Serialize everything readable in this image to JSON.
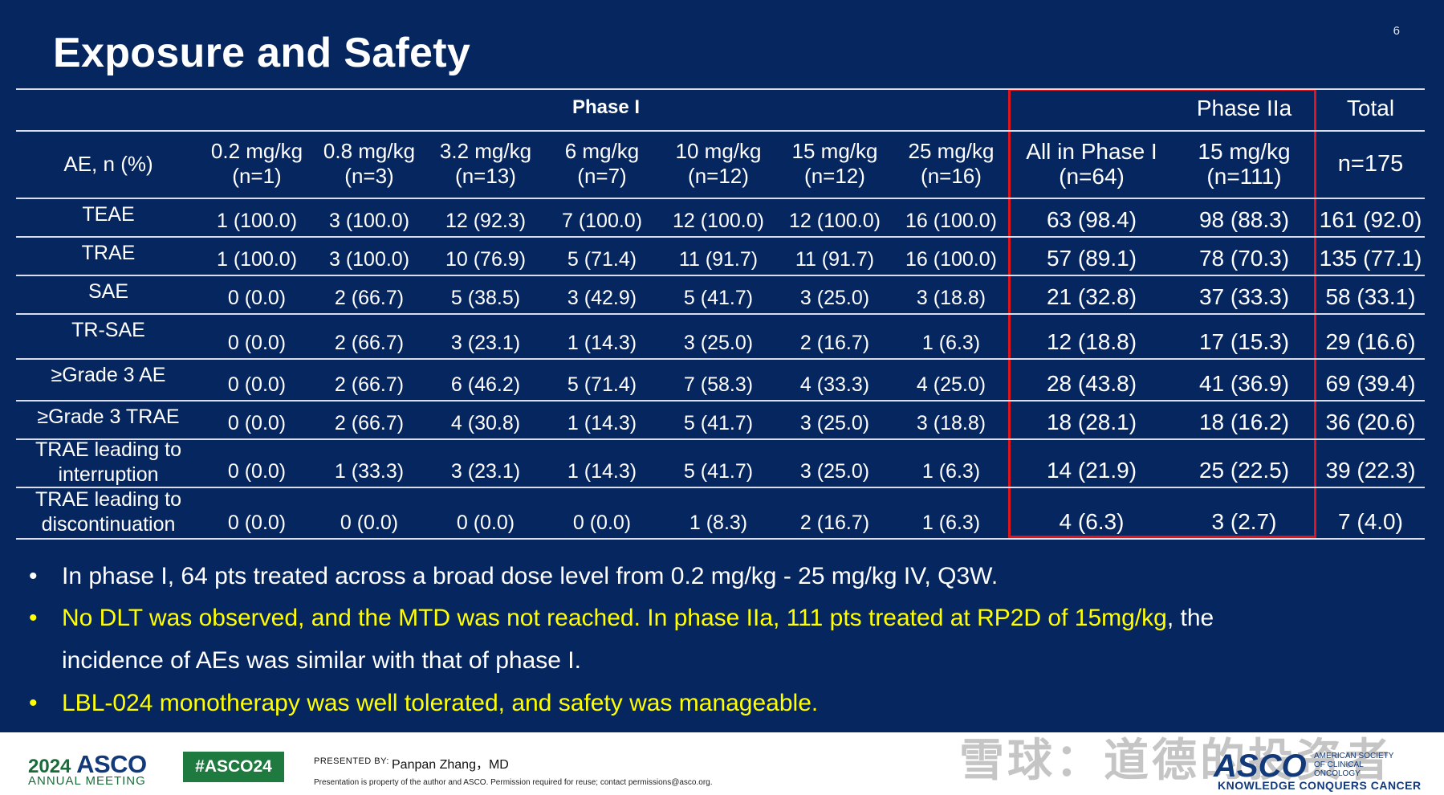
{
  "slide": {
    "page_number": "6",
    "title": "Exposure and Safety"
  },
  "table": {
    "group_headers": {
      "phase1": "Phase I",
      "phase2a": "Phase IIa",
      "total": "Total"
    },
    "columns": [
      {
        "line1": "AE, n (%)",
        "line2": ""
      },
      {
        "line1": "0.2 mg/kg",
        "line2": "(n=1)"
      },
      {
        "line1": "0.8 mg/kg",
        "line2": "(n=3)"
      },
      {
        "line1": "3.2 mg/kg",
        "line2": "(n=13)"
      },
      {
        "line1": "6 mg/kg",
        "line2": "(n=7)"
      },
      {
        "line1": "10 mg/kg",
        "line2": "(n=12)"
      },
      {
        "line1": "15 mg/kg",
        "line2": "(n=12)"
      },
      {
        "line1": "25 mg/kg",
        "line2": "(n=16)"
      },
      {
        "line1": "All in Phase I",
        "line2": "(n=64)"
      },
      {
        "line1": "15 mg/kg",
        "line2": "(n=111)"
      },
      {
        "line1": "n=175",
        "line2": ""
      }
    ],
    "rows": [
      {
        "label": "TEAE",
        "cells": [
          "1 (100.0)",
          "3 (100.0)",
          "12 (92.3)",
          "7 (100.0)",
          "12 (100.0)",
          "12 (100.0)",
          "16 (100.0)",
          "63 (98.4)",
          "98 (88.3)",
          "161 (92.0)"
        ]
      },
      {
        "label": "TRAE",
        "cells": [
          "1 (100.0)",
          "3 (100.0)",
          "10 (76.9)",
          "5 (71.4)",
          "11 (91.7)",
          "11 (91.7)",
          "16 (100.0)",
          "57 (89.1)",
          "78 (70.3)",
          "135 (77.1)"
        ]
      },
      {
        "label": "SAE",
        "cells": [
          "0 (0.0)",
          "2 (66.7)",
          "5 (38.5)",
          "3 (42.9)",
          "5 (41.7)",
          "3 (25.0)",
          "3 (18.8)",
          "21 (32.8)",
          "37 (33.3)",
          "58 (33.1)"
        ]
      },
      {
        "label": "TR-SAE",
        "cells": [
          "0 (0.0)",
          "2 (66.7)",
          "3 (23.1)",
          "1 (14.3)",
          "3 (25.0)",
          "2 (16.7)",
          "1 (6.3)",
          "12 (18.8)",
          "17 (15.3)",
          "29 (16.6)"
        ]
      },
      {
        "label": "≥Grade 3 AE",
        "cells": [
          "0 (0.0)",
          "2 (66.7)",
          "6 (46.2)",
          "5 (71.4)",
          "7 (58.3)",
          "4 (33.3)",
          "4 (25.0)",
          "28 (43.8)",
          "41 (36.9)",
          "69 (39.4)"
        ]
      },
      {
        "label": "≥Grade 3 TRAE",
        "cells": [
          "0 (0.0)",
          "2 (66.7)",
          "4 (30.8)",
          "1 (14.3)",
          "5 (41.7)",
          "3 (25.0)",
          "3 (18.8)",
          "18 (28.1)",
          "18 (16.2)",
          "36 (20.6)"
        ]
      },
      {
        "label": "TRAE leading to interruption",
        "cells": [
          "0 (0.0)",
          "1 (33.3)",
          "3 (23.1)",
          "1 (14.3)",
          "5 (41.7)",
          "3 (25.0)",
          "1 (6.3)",
          "14 (21.9)",
          "25 (22.5)",
          "39 (22.3)"
        ]
      },
      {
        "label": "TRAE leading to discontinuation",
        "cells": [
          "0 (0.0)",
          "0 (0.0)",
          "0 (0.0)",
          "0 (0.0)",
          "1 (8.3)",
          "2 (16.7)",
          "1 (6.3)",
          "4 (6.3)",
          "3 (2.7)",
          "7 (4.0)"
        ]
      }
    ]
  },
  "bullets": [
    {
      "parts": [
        {
          "text": "In phase I, 64 pts treated across a broad dose level from 0.2 mg/kg - 25 mg/kg IV, Q3W.",
          "color": "white"
        }
      ]
    },
    {
      "parts": [
        {
          "text": "No DLT was observed, and the MTD was not reached. In phase IIa, 111 pts treated at RP2D of 15mg/kg",
          "color": "yellow"
        },
        {
          "text": ", the",
          "color": "white"
        }
      ]
    },
    {
      "continuation": true,
      "parts": [
        {
          "text": "incidence of AEs was similar with that of phase I.",
          "color": "white"
        }
      ]
    },
    {
      "parts": [
        {
          "text": "LBL-024 monotherapy was well tolerated, and safety was manageable.",
          "color": "yellow"
        }
      ]
    }
  ],
  "footer": {
    "asco_year": "2024",
    "asco_word": "ASCO",
    "annual_meeting": "ANNUAL MEETING",
    "hashtag": "#ASCO24",
    "presented_by_label": "PRESENTED BY:",
    "presenter": "Panpan Zhang，MD",
    "property_notice": "Presentation is property of the author and ASCO. Permission required for reuse; contact permissions@asco.org.",
    "logo_text": "ASCO",
    "society_text": "AMERICAN SOCIETY OF CLINICAL ONCOLOGY",
    "tagline": "KNOWLEDGE CONQUERS CANCER",
    "watermark": "雪球：道德的投资者"
  },
  "colors": {
    "background": "#062660",
    "highlight_box": "#e0141c",
    "bullet_highlight": "#ffff00",
    "asco_green": "#1e7a3e",
    "asco_blue": "#123a7a"
  }
}
